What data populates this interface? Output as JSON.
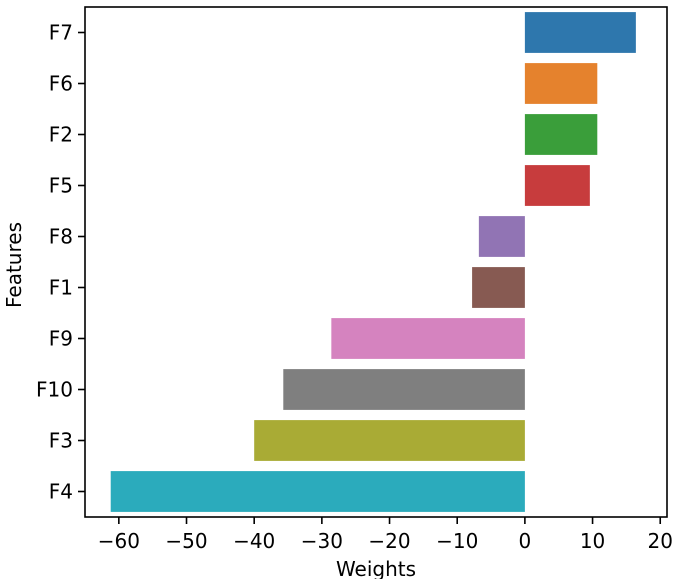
{
  "chart_data": {
    "type": "bar",
    "orientation": "horizontal",
    "xlabel": "Weights",
    "ylabel": "Features",
    "xlim": [
      -65,
      21
    ],
    "xticks": [
      -60,
      -50,
      -40,
      -30,
      -20,
      -10,
      0,
      10,
      20
    ],
    "xtick_labels": [
      "−60",
      "−50",
      "−40",
      "−30",
      "−20",
      "−10",
      "0",
      "10",
      "20"
    ],
    "grid": false,
    "categories": [
      "F7",
      "F6",
      "F2",
      "F5",
      "F8",
      "F1",
      "F9",
      "F10",
      "F3",
      "F4"
    ],
    "values": [
      16.4,
      10.7,
      10.7,
      9.6,
      -6.8,
      -7.8,
      -28.6,
      -35.7,
      -40.0,
      -61.2
    ],
    "colors": [
      "#2e77ad",
      "#e5822d",
      "#3a9e3a",
      "#c73c3d",
      "#9174b4",
      "#875a52",
      "#d583bf",
      "#7f7f7f",
      "#a9ab35",
      "#2babbc"
    ]
  }
}
